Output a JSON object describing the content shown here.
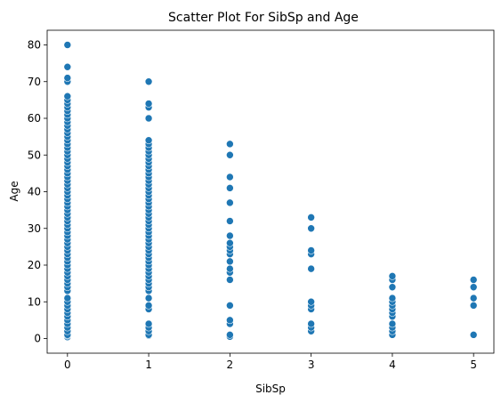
{
  "chart_data": {
    "type": "scatter",
    "title": "Scatter Plot For SibSp and Age",
    "xlabel": "SibSp",
    "ylabel": "Age",
    "xlim": [
      -0.25,
      5.25
    ],
    "ylim": [
      -4,
      84
    ],
    "xticks": [
      0,
      1,
      2,
      3,
      4,
      5
    ],
    "yticks": [
      0,
      10,
      20,
      30,
      40,
      50,
      60,
      70,
      80
    ],
    "grid": false,
    "marker_color": "#1f77b4",
    "series": [
      {
        "points": [
          {
            "x": 0,
            "ages": [
              0.4,
              0.8,
              1,
              2,
              3,
              4,
              5,
              6,
              7,
              8,
              9,
              10,
              11,
              13,
              14,
              15,
              16,
              17,
              18,
              19,
              20,
              21,
              22,
              23,
              24,
              25,
              26,
              27,
              28,
              29,
              30,
              31,
              32,
              33,
              34,
              35,
              36,
              37,
              38,
              39,
              40,
              41,
              42,
              43,
              44,
              45,
              46,
              47,
              48,
              49,
              50,
              51,
              52,
              53,
              54,
              55,
              56,
              57,
              58,
              59,
              60,
              61,
              62,
              63,
              64,
              65,
              66,
              70,
              71,
              74,
              80
            ]
          },
          {
            "x": 1,
            "ages": [
              0.8,
              1,
              2,
              3,
              4,
              8,
              9,
              11,
              13,
              14,
              15,
              16,
              17,
              18,
              19,
              20,
              21,
              22,
              23,
              24,
              25,
              26,
              27,
              28,
              29,
              30,
              31,
              32,
              33,
              34,
              35,
              36,
              37,
              38,
              39,
              40,
              41,
              42,
              43,
              44,
              45,
              46,
              47,
              48,
              49,
              50,
              51,
              52,
              53,
              54,
              60,
              63,
              64,
              70
            ]
          },
          {
            "x": 2,
            "ages": [
              0.5,
              1,
              4,
              5,
              9,
              16,
              18,
              19,
              21,
              23,
              24,
              25,
              26,
              28,
              32,
              37,
              41,
              44,
              50,
              53
            ]
          },
          {
            "x": 3,
            "ages": [
              2,
              3,
              4,
              8,
              9,
              10,
              19,
              23,
              24,
              30,
              33
            ]
          },
          {
            "x": 4,
            "ages": [
              1,
              2,
              3,
              4,
              6,
              7,
              8,
              9,
              10,
              11,
              14,
              16,
              17
            ]
          },
          {
            "x": 5,
            "ages": [
              1,
              9,
              11,
              14,
              16
            ]
          }
        ]
      }
    ]
  }
}
